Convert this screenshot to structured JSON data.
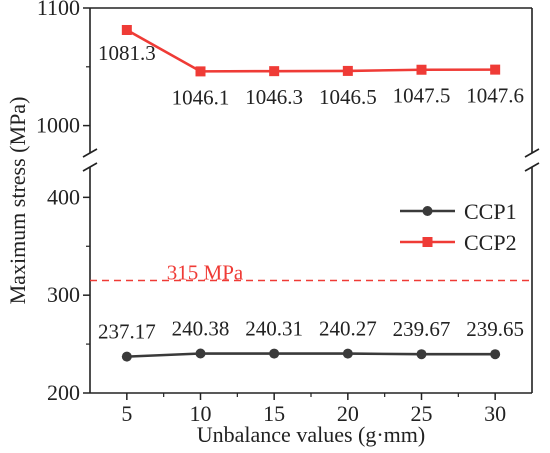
{
  "chart_data": {
    "type": "line",
    "xlabel": "Unbalance values (g·mm)",
    "ylabel": "Maximum stress (MPa)",
    "x": [
      5,
      10,
      15,
      20,
      25,
      30
    ],
    "x_ticks": [
      "5",
      "10",
      "15",
      "20",
      "25",
      "30"
    ],
    "xlim": [
      2.5,
      32.5
    ],
    "y_axis_break": true,
    "y_lower_segment": {
      "ylim": [
        200,
        430
      ],
      "ticks": [
        "200",
        "300",
        "400"
      ]
    },
    "y_upper_segment": {
      "ylim": [
        975,
        1100
      ],
      "ticks": [
        "1000",
        "1100"
      ]
    },
    "series": [
      {
        "name": "CCP1",
        "marker": "circle",
        "color": "#3a3a3a",
        "values": [
          237.17,
          240.38,
          240.31,
          240.27,
          239.67,
          239.65
        ],
        "labels": [
          "237.17",
          "240.38",
          "240.31",
          "240.27",
          "239.67",
          "239.65"
        ]
      },
      {
        "name": "CCP2",
        "marker": "square",
        "color": "#ef3b36",
        "values": [
          1081.3,
          1046.1,
          1046.3,
          1046.5,
          1047.5,
          1047.6
        ],
        "labels": [
          "1081.3",
          "1046.1",
          "1046.3",
          "1046.5",
          "1047.5",
          "1047.6"
        ]
      }
    ],
    "reference_line": {
      "value": 315,
      "label": "315 MPa",
      "color": "#ef3b36",
      "style": "dashed"
    },
    "legend": {
      "placement": "right",
      "entries": [
        "CCP1",
        "CCP2"
      ]
    }
  }
}
